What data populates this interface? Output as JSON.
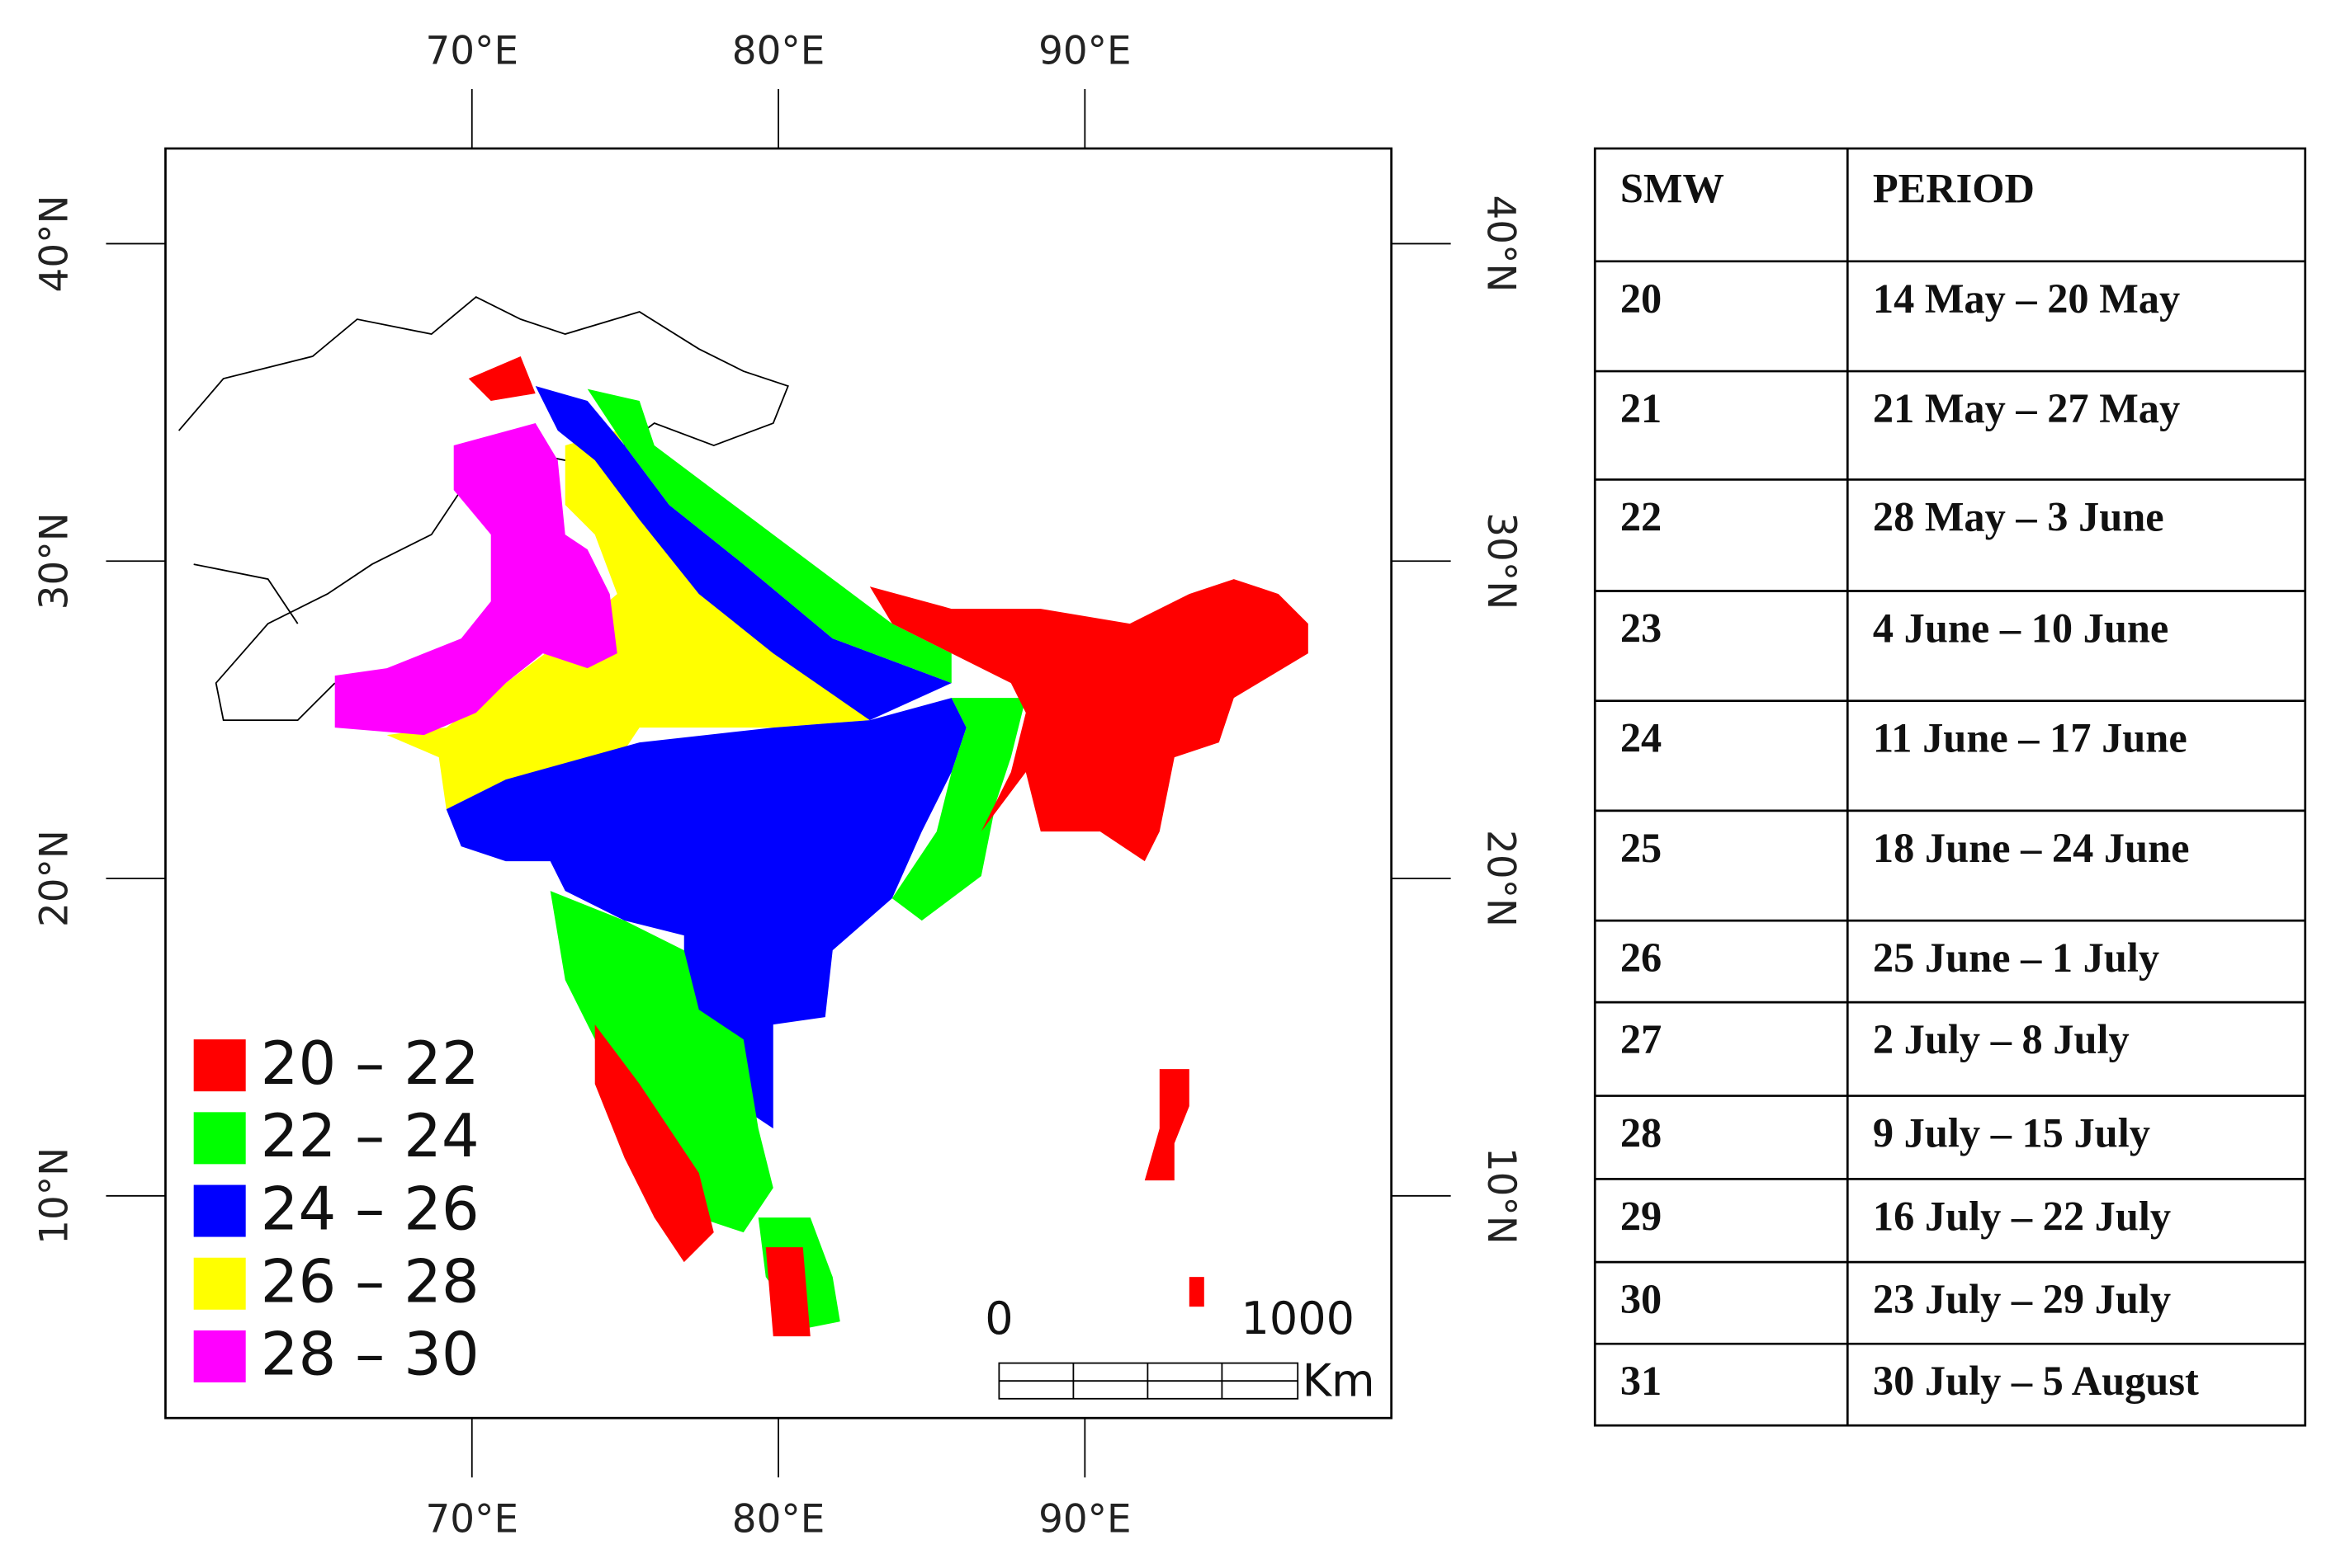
{
  "map": {
    "lon_range": [
      60,
      100
    ],
    "lat_range": [
      3,
      43
    ],
    "lon_ticks": [
      {
        "value": 70,
        "label": "70°E"
      },
      {
        "value": 80,
        "label": "80°E"
      },
      {
        "value": 90,
        "label": "90°E"
      }
    ],
    "lat_ticks": [
      {
        "value": 40,
        "label": "40°N"
      },
      {
        "value": 30,
        "label": "30°N"
      },
      {
        "value": 20,
        "label": "20°N"
      },
      {
        "value": 10,
        "label": "10°N"
      }
    ],
    "legend": [
      {
        "color": "#ff0000",
        "label": "20 – 22"
      },
      {
        "color": "#00ff00",
        "label": "22 – 24"
      },
      {
        "color": "#0000ff",
        "label": "24 – 26"
      },
      {
        "color": "#ffff00",
        "label": "26 – 28"
      },
      {
        "color": "#ff00ff",
        "label": "28 – 30"
      }
    ],
    "scale_bar": {
      "start": "0",
      "end": "1000",
      "unit": "Km"
    }
  },
  "table": {
    "header": [
      "SMW",
      "PERIOD"
    ],
    "rows": [
      [
        "20",
        "14 May – 20 May"
      ],
      [
        "21",
        "21 May – 27 May"
      ],
      [
        "22",
        "28 May – 3 June"
      ],
      [
        "23",
        "4 June – 10 June"
      ],
      [
        "24",
        "11 June – 17 June"
      ],
      [
        "25",
        "18 June – 24 June"
      ],
      [
        "26",
        "25 June – 1 July"
      ],
      [
        "27",
        "2 July – 8 July"
      ],
      [
        "28",
        "9 July – 15 July"
      ],
      [
        "29",
        "16 July – 22 July"
      ],
      [
        "30",
        "23 July – 29 July"
      ],
      [
        "31",
        "30 July – 5 August"
      ]
    ]
  }
}
